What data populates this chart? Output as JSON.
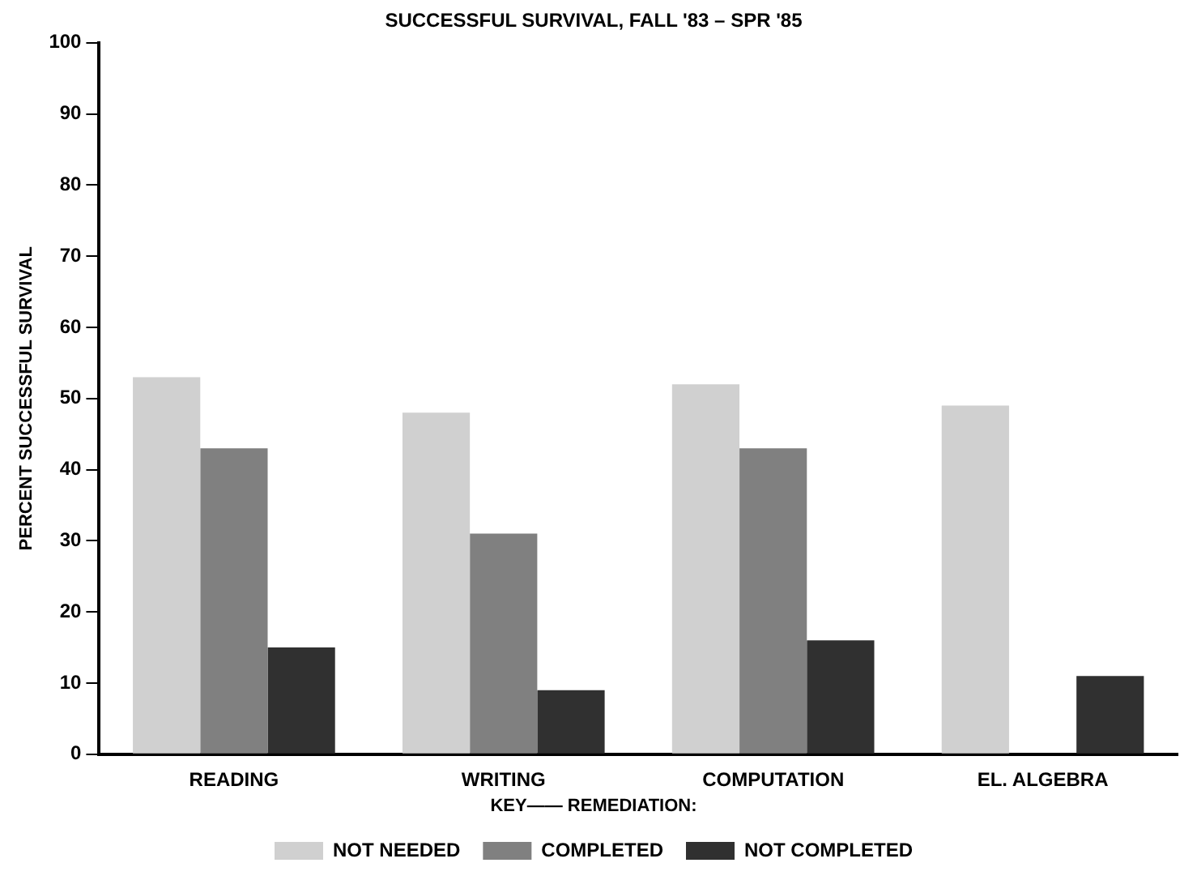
{
  "chart_data": {
    "type": "bar",
    "title": "SUCCESSFUL SURVIVAL, FALL '83 – SPR '85",
    "ylabel": "PERCENT SUCCESSFUL SURVIVAL",
    "legend_title": "KEY—— REMEDIATION:",
    "categories": [
      "READING",
      "WRITING",
      "COMPUTATION",
      "EL. ALGEBRA"
    ],
    "series": [
      {
        "name": "NOT NEEDED",
        "color": "#d0d0d0",
        "values": [
          53,
          48,
          52,
          49
        ]
      },
      {
        "name": "COMPLETED",
        "color": "#808080",
        "values": [
          43,
          31,
          43,
          null
        ]
      },
      {
        "name": "NOT COMPLETED",
        "color": "#303030",
        "values": [
          15,
          9,
          16,
          11
        ]
      }
    ],
    "ylim": [
      0,
      100
    ],
    "yticks": [
      0,
      10,
      20,
      30,
      40,
      50,
      60,
      70,
      80,
      90,
      100
    ],
    "grid": false,
    "legend": "bottom"
  }
}
